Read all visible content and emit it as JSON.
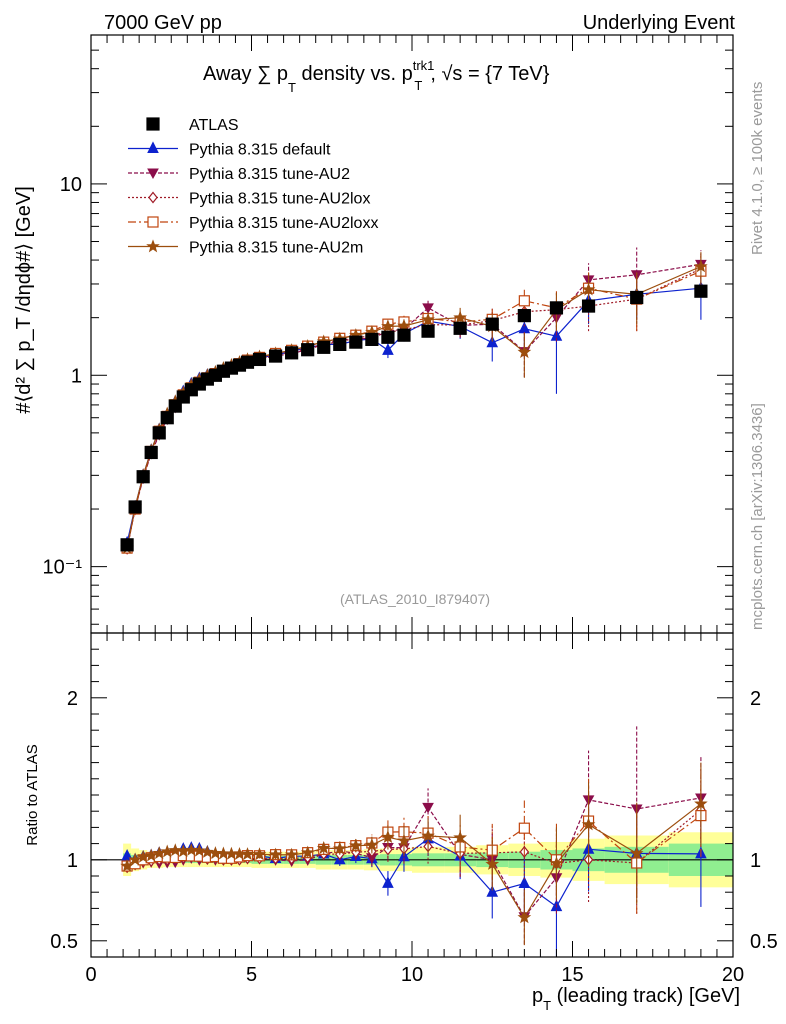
{
  "header": {
    "left": "7000 GeV pp",
    "right": "Underlying Event"
  },
  "side": {
    "rivet": "Rivet 4.1.0, ≥ 100k events",
    "mcplots": "mcplots.cern.ch [arXiv:1306.3436]"
  },
  "chart_data": {
    "type": "scatter",
    "title_main": "Away ∑ p",
    "title_sub_T": "T",
    "title_mid": " density vs. p",
    "title_sup": "trk1",
    "title_sub2": "T",
    "title_end": ", √s = {7 TeV}",
    "ylabel": "#⟨d² ∑ p_T /dηdϕ#⟩ [GeV]",
    "ylabel_ratio": "Ratio to ATLAS",
    "xlabel": "p",
    "xlabel_sub": "T",
    "xlabel_rest": " (leading track) [GeV]",
    "analysis_id": "(ATLAS_2010_I879407)",
    "xlim": [
      0,
      20
    ],
    "ylim_main": [
      0.045,
      60
    ],
    "ylim_ratio": [
      0.4,
      2.4
    ],
    "x_ticks": [
      "0",
      "5",
      "10",
      "15",
      "20"
    ],
    "y_ticks_main": [
      "10⁻¹",
      "1",
      "10"
    ],
    "y_ticks_ratio": [
      "0.5",
      "1",
      "2"
    ],
    "x": [
      1.125,
      1.375,
      1.625,
      1.875,
      2.125,
      2.375,
      2.625,
      2.875,
      3.125,
      3.375,
      3.625,
      3.875,
      4.125,
      4.375,
      4.625,
      4.875,
      5.25,
      5.75,
      6.25,
      6.75,
      7.25,
      7.75,
      8.25,
      8.75,
      9.25,
      9.75,
      10.5,
      11.5,
      12.5,
      13.5,
      14.5,
      15.5,
      17.0,
      19.0
    ],
    "x_half_width": [
      0.125,
      0.125,
      0.125,
      0.125,
      0.125,
      0.125,
      0.125,
      0.125,
      0.125,
      0.125,
      0.125,
      0.125,
      0.125,
      0.125,
      0.125,
      0.125,
      0.25,
      0.25,
      0.25,
      0.25,
      0.25,
      0.25,
      0.25,
      0.25,
      0.25,
      0.25,
      0.5,
      0.5,
      0.5,
      0.5,
      0.5,
      0.5,
      1.0,
      1.0
    ],
    "ref_values": [
      0.13,
      0.205,
      0.295,
      0.395,
      0.5,
      0.6,
      0.69,
      0.77,
      0.84,
      0.9,
      0.955,
      1.0,
      1.05,
      1.09,
      1.13,
      1.17,
      1.21,
      1.26,
      1.31,
      1.36,
      1.4,
      1.45,
      1.49,
      1.54,
      1.58,
      1.62,
      1.7,
      1.76,
      1.85,
      2.05,
      2.25,
      2.3,
      2.55,
      2.75
    ],
    "band_stat": [
      0.04,
      0.03,
      0.025,
      0.022,
      0.02,
      0.02,
      0.02,
      0.02,
      0.02,
      0.02,
      0.02,
      0.02,
      0.02,
      0.02,
      0.02,
      0.02,
      0.025,
      0.025,
      0.025,
      0.025,
      0.03,
      0.03,
      0.03,
      0.03,
      0.035,
      0.035,
      0.04,
      0.04,
      0.045,
      0.05,
      0.06,
      0.07,
      0.08,
      0.1
    ],
    "band_total": [
      0.1,
      0.07,
      0.06,
      0.05,
      0.05,
      0.045,
      0.045,
      0.045,
      0.045,
      0.045,
      0.045,
      0.045,
      0.045,
      0.045,
      0.045,
      0.045,
      0.05,
      0.05,
      0.05,
      0.05,
      0.06,
      0.06,
      0.06,
      0.065,
      0.07,
      0.07,
      0.08,
      0.08,
      0.09,
      0.1,
      0.11,
      0.13,
      0.15,
      0.17
    ],
    "series": [
      {
        "name": "ATLAS",
        "legend": "ATLAS",
        "color": "#000000",
        "dash": "",
        "marker": "square",
        "filled": true,
        "values": [
          0.13,
          0.205,
          0.295,
          0.395,
          0.5,
          0.6,
          0.69,
          0.77,
          0.84,
          0.9,
          0.955,
          1.0,
          1.05,
          1.09,
          1.13,
          1.17,
          1.21,
          1.26,
          1.31,
          1.36,
          1.4,
          1.45,
          1.49,
          1.54,
          1.58,
          1.62,
          1.7,
          1.76,
          1.85,
          2.05,
          2.25,
          2.3,
          2.55,
          2.75
        ],
        "errors": [
          0.0,
          0.0,
          0.0,
          0.0,
          0.0,
          0.0,
          0.0,
          0.0,
          0.0,
          0.0,
          0.0,
          0.0,
          0.0,
          0.0,
          0.0,
          0.0,
          0.0,
          0.0,
          0.0,
          0.0,
          0.0,
          0.0,
          0.0,
          0.0,
          0.0,
          0.0,
          0.0,
          0.0,
          0.0,
          0.0,
          0.0,
          0.0,
          0.0,
          0.0
        ]
      },
      {
        "name": "Pythia 8.315 default",
        "legend": "Pythia 8.315 default",
        "color": "#0d22ce",
        "dash": "",
        "marker": "triangle-up",
        "filled": true,
        "values": [
          0.133,
          0.205,
          0.3,
          0.405,
          0.52,
          0.625,
          0.725,
          0.82,
          0.9,
          0.96,
          1.0,
          1.03,
          1.08,
          1.12,
          1.16,
          1.2,
          1.24,
          1.27,
          1.34,
          1.39,
          1.45,
          1.45,
          1.52,
          1.55,
          1.35,
          1.65,
          1.92,
          1.8,
          1.48,
          1.75,
          1.6,
          2.45,
          2.65,
          2.85
        ],
        "errors": [
          0.003,
          0.004,
          0.005,
          0.006,
          0.008,
          0.009,
          0.01,
          0.011,
          0.012,
          0.013,
          0.014,
          0.015,
          0.016,
          0.017,
          0.018,
          0.02,
          0.03,
          0.035,
          0.04,
          0.045,
          0.05,
          0.055,
          0.06,
          0.08,
          0.12,
          0.15,
          0.18,
          0.25,
          0.3,
          0.4,
          0.8,
          0.6,
          0.7,
          0.9
        ]
      },
      {
        "name": "Pythia 8.315 tune-AU2",
        "legend": "Pythia 8.315 tune-AU2",
        "color": "#8b0d4a",
        "dash": "4,2",
        "marker": "triangle-down",
        "filled": true,
        "values": [
          0.125,
          0.2,
          0.29,
          0.39,
          0.49,
          0.59,
          0.68,
          0.77,
          0.85,
          0.9,
          0.96,
          1.0,
          1.05,
          1.09,
          1.14,
          1.18,
          1.22,
          1.26,
          1.3,
          1.36,
          1.45,
          1.53,
          1.55,
          1.56,
          1.7,
          1.74,
          2.25,
          1.82,
          1.85,
          1.33,
          2.0,
          3.15,
          3.35,
          3.8
        ],
        "errors": [
          0.003,
          0.004,
          0.005,
          0.006,
          0.008,
          0.009,
          0.01,
          0.011,
          0.012,
          0.013,
          0.014,
          0.015,
          0.016,
          0.017,
          0.018,
          0.02,
          0.03,
          0.035,
          0.04,
          0.045,
          0.05,
          0.055,
          0.06,
          0.08,
          0.12,
          0.15,
          0.2,
          0.25,
          0.3,
          0.35,
          0.5,
          0.7,
          1.3,
          0.7
        ]
      },
      {
        "name": "Pythia 8.315 tune-AU2lox",
        "legend": "Pythia 8.315 tune-AU2lox",
        "color": "#a01c28",
        "dash": "2,2",
        "marker": "diamond",
        "filled": false,
        "values": [
          0.124,
          0.199,
          0.292,
          0.392,
          0.5,
          0.6,
          0.7,
          0.78,
          0.86,
          0.92,
          0.96,
          1.01,
          1.05,
          1.09,
          1.13,
          1.18,
          1.22,
          1.27,
          1.32,
          1.38,
          1.45,
          1.5,
          1.56,
          1.62,
          1.68,
          1.73,
          1.84,
          1.83,
          1.93,
          2.15,
          2.2,
          2.3,
          2.5,
          3.6
        ],
        "errors": [
          0.003,
          0.004,
          0.005,
          0.006,
          0.008,
          0.009,
          0.01,
          0.011,
          0.012,
          0.013,
          0.014,
          0.015,
          0.016,
          0.017,
          0.018,
          0.02,
          0.03,
          0.035,
          0.04,
          0.045,
          0.05,
          0.055,
          0.06,
          0.08,
          0.12,
          0.15,
          0.18,
          0.25,
          0.3,
          0.35,
          0.5,
          0.6,
          0.8,
          0.7
        ]
      },
      {
        "name": "Pythia 8.315 tune-AU2loxx",
        "legend": "Pythia 8.315 tune-AU2loxx",
        "color": "#c0450f",
        "dash": "8,3,2,3",
        "marker": "square",
        "filled": false,
        "values": [
          0.125,
          0.2,
          0.295,
          0.4,
          0.51,
          0.61,
          0.7,
          0.79,
          0.86,
          0.92,
          0.97,
          1.02,
          1.06,
          1.1,
          1.15,
          1.2,
          1.24,
          1.3,
          1.35,
          1.42,
          1.49,
          1.56,
          1.62,
          1.7,
          1.85,
          1.9,
          1.98,
          1.9,
          1.96,
          2.45,
          2.25,
          2.85,
          2.5,
          3.5
        ],
        "errors": [
          0.003,
          0.004,
          0.005,
          0.006,
          0.008,
          0.009,
          0.01,
          0.011,
          0.012,
          0.013,
          0.014,
          0.015,
          0.016,
          0.017,
          0.018,
          0.02,
          0.03,
          0.035,
          0.04,
          0.045,
          0.05,
          0.055,
          0.06,
          0.08,
          0.12,
          0.15,
          0.18,
          0.25,
          0.3,
          0.35,
          0.5,
          0.6,
          0.8,
          0.7
        ]
      },
      {
        "name": "Pythia 8.315 tune-AU2m",
        "legend": "Pythia 8.315 tune-AU2m",
        "color": "#9c4e0e",
        "dash": "",
        "marker": "star",
        "filled": true,
        "values": [
          0.125,
          0.205,
          0.3,
          0.405,
          0.52,
          0.63,
          0.73,
          0.81,
          0.89,
          0.95,
          1.0,
          1.04,
          1.09,
          1.13,
          1.17,
          1.21,
          1.25,
          1.3,
          1.35,
          1.42,
          1.5,
          1.55,
          1.62,
          1.68,
          1.8,
          1.81,
          1.95,
          2.0,
          1.8,
          1.32,
          2.2,
          2.8,
          2.65,
          3.7
        ],
        "errors": [
          0.003,
          0.004,
          0.005,
          0.006,
          0.008,
          0.009,
          0.01,
          0.011,
          0.012,
          0.013,
          0.014,
          0.015,
          0.016,
          0.017,
          0.018,
          0.02,
          0.03,
          0.035,
          0.04,
          0.045,
          0.05,
          0.055,
          0.06,
          0.08,
          0.12,
          0.15,
          0.18,
          0.25,
          0.3,
          0.35,
          0.5,
          0.6,
          0.8,
          0.7
        ]
      }
    ],
    "colors": {
      "band_stat": "#90ee90",
      "band_total": "#ffff99",
      "axis": "#000000",
      "side_text": "#9a9a9a",
      "analysis_text": "#999999"
    }
  }
}
